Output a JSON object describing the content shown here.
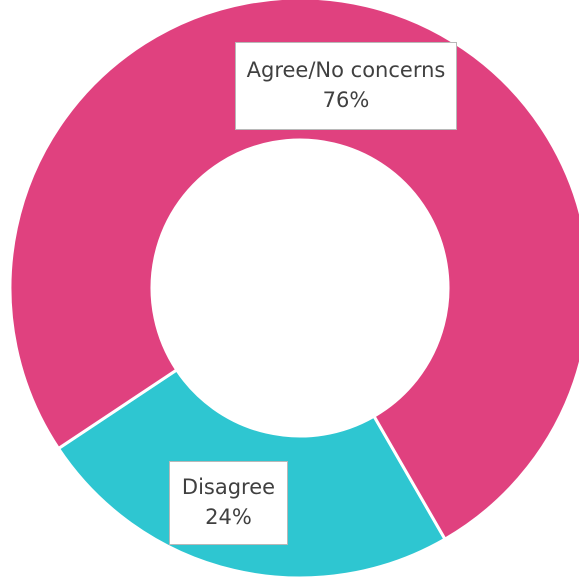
{
  "chart_data": {
    "type": "pie",
    "variant": "donut",
    "title": "",
    "categories": [
      "Agree/No concerns",
      "Disagree"
    ],
    "values": [
      76,
      24
    ],
    "unit": "%",
    "colors": [
      "#e0417f",
      "#2ec6d1"
    ],
    "labels": [
      {
        "category": "Agree/No concerns",
        "value_text": "76%"
      },
      {
        "category": "Disagree",
        "value_text": "24%"
      }
    ],
    "legend": "none"
  }
}
